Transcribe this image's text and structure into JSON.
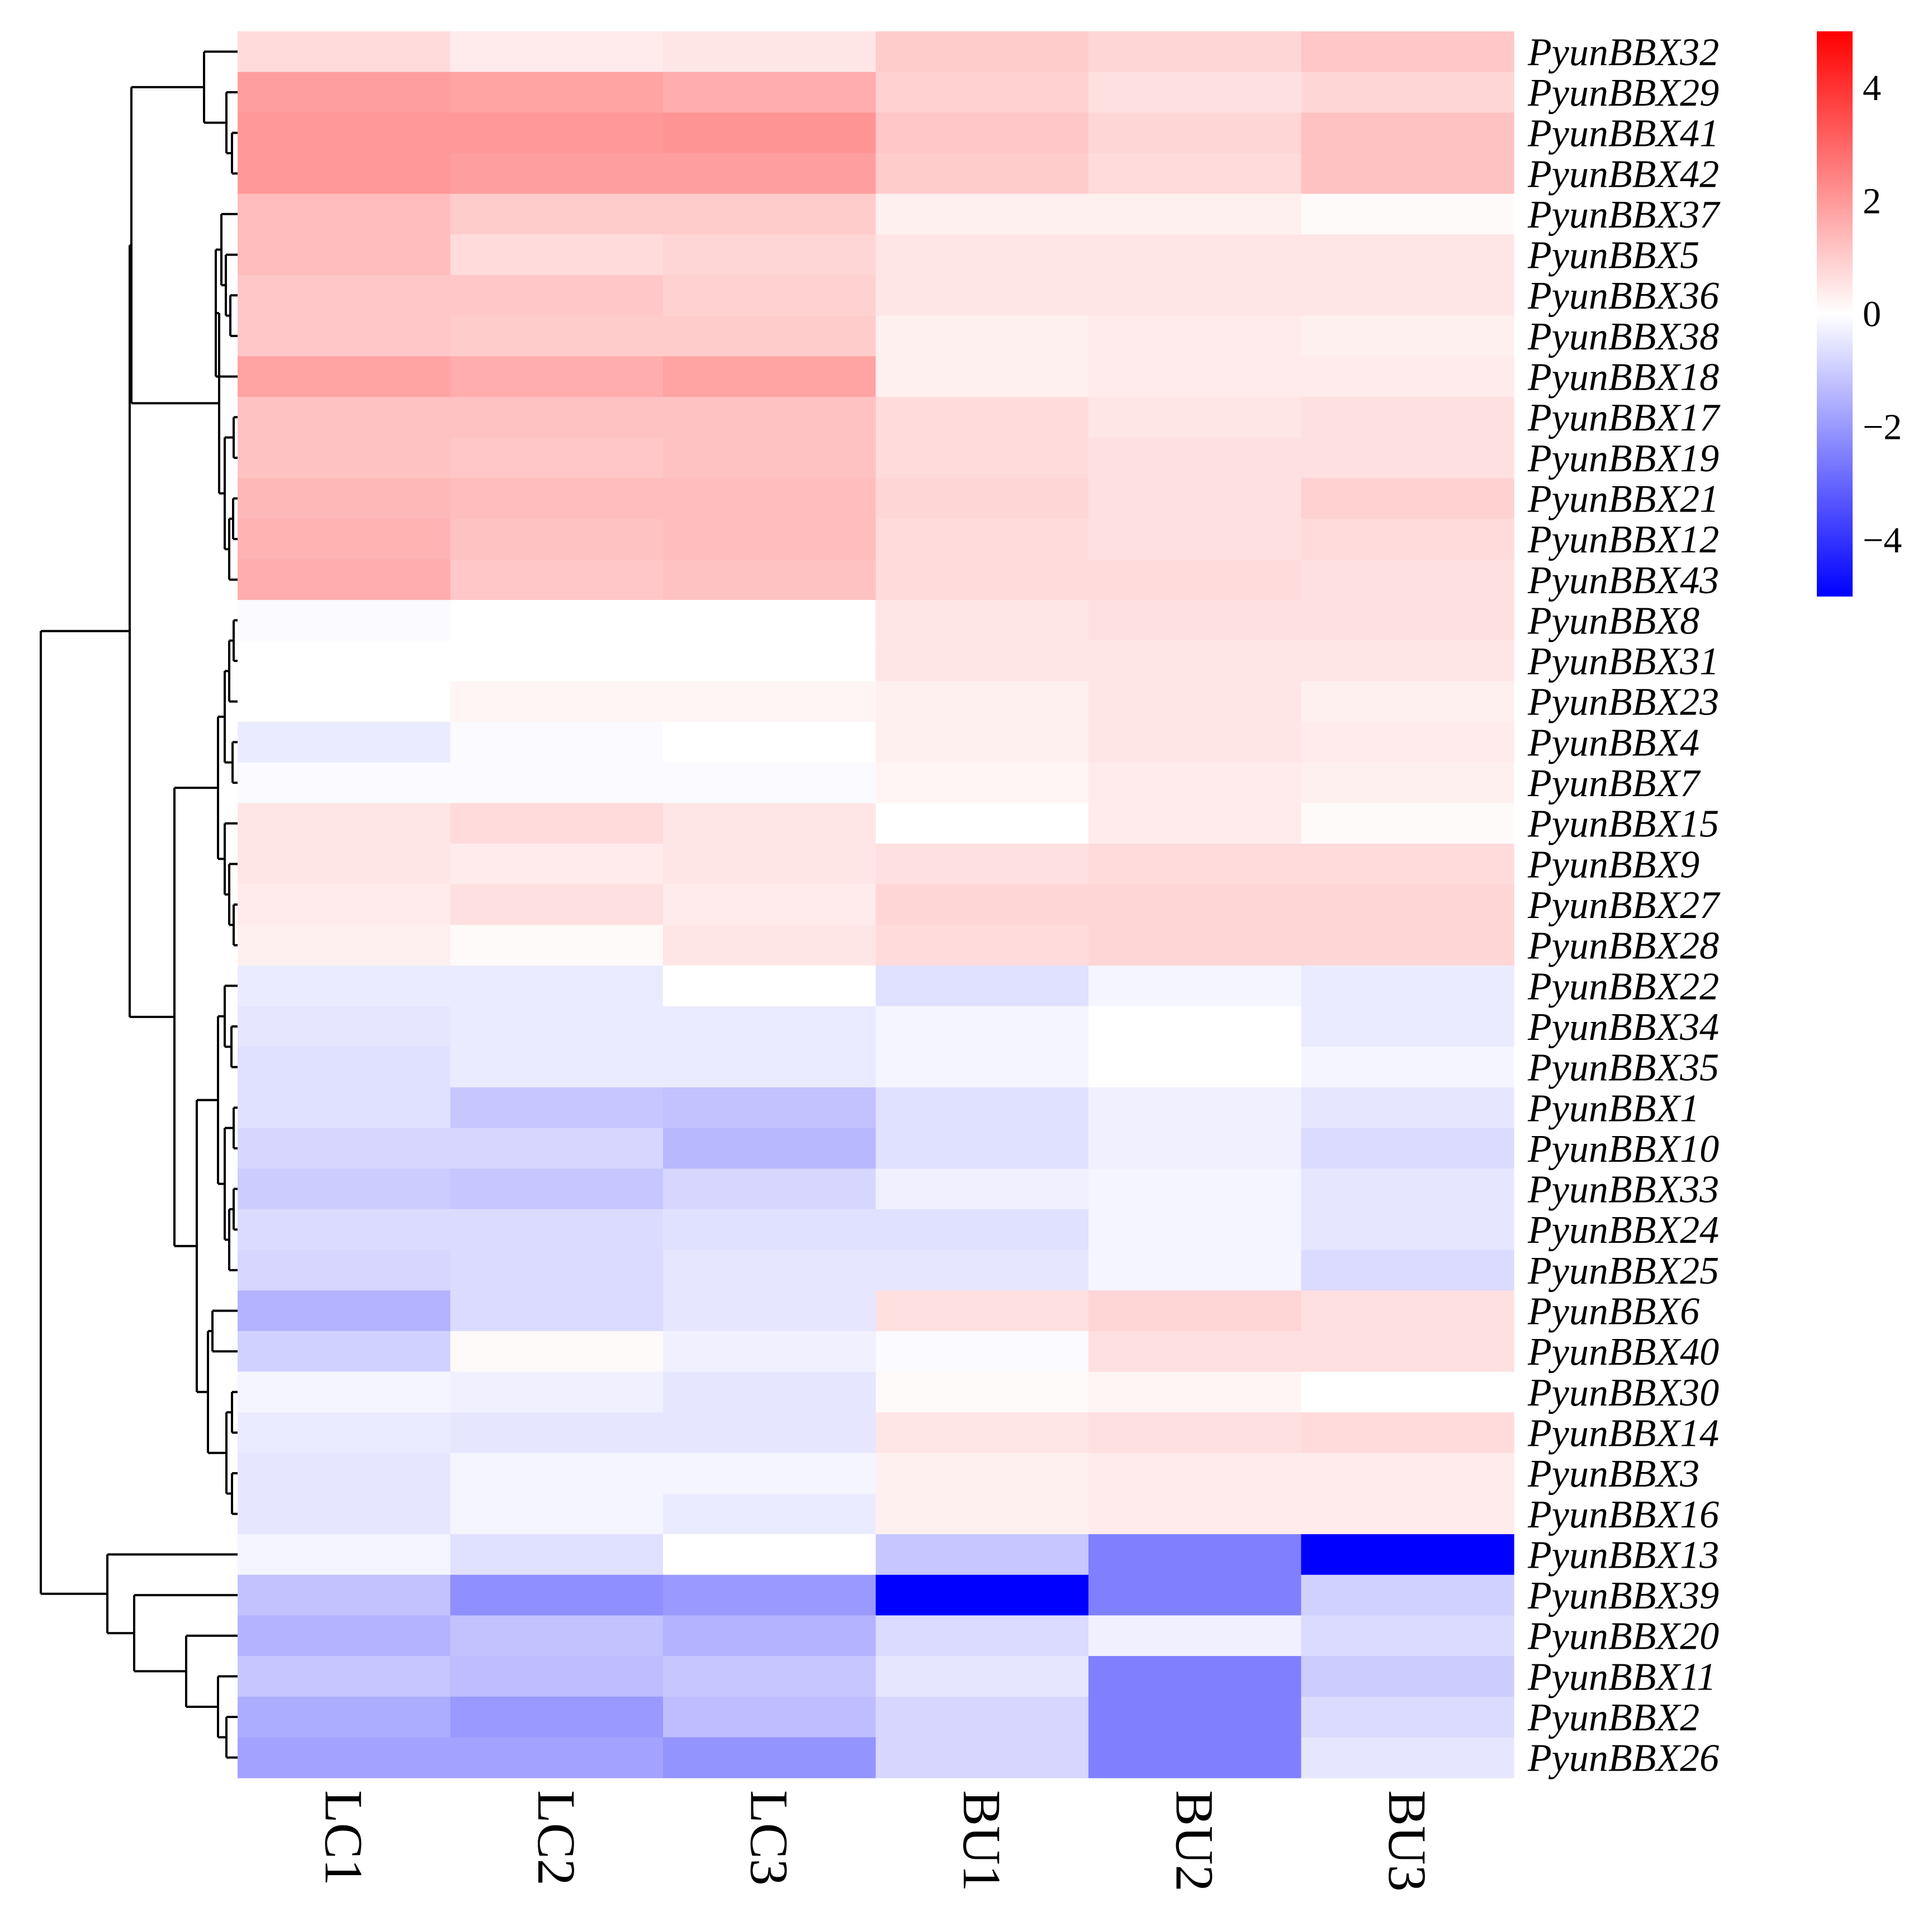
{
  "chart_data": {
    "type": "heatmap",
    "title": "",
    "columns": [
      "LC1",
      "LC2",
      "LC3",
      "BU1",
      "BU2",
      "BU3"
    ],
    "rows": [
      "PyunBBX32",
      "PyunBBX29",
      "PyunBBX41",
      "PyunBBX42",
      "PyunBBX37",
      "PyunBBX5",
      "PyunBBX36",
      "PyunBBX38",
      "PyunBBX18",
      "PyunBBX17",
      "PyunBBX19",
      "PyunBBX21",
      "PyunBBX12",
      "PyunBBX43",
      "PyunBBX8",
      "PyunBBX31",
      "PyunBBX23",
      "PyunBBX4",
      "PyunBBX7",
      "PyunBBX15",
      "PyunBBX9",
      "PyunBBX27",
      "PyunBBX28",
      "PyunBBX22",
      "PyunBBX34",
      "PyunBBX35",
      "PyunBBX1",
      "PyunBBX10",
      "PyunBBX33",
      "PyunBBX24",
      "PyunBBX25",
      "PyunBBX6",
      "PyunBBX40",
      "PyunBBX30",
      "PyunBBX14",
      "PyunBBX3",
      "PyunBBX16",
      "PyunBBX13",
      "PyunBBX39",
      "PyunBBX20",
      "PyunBBX11",
      "PyunBBX2",
      "PyunBBX26"
    ],
    "values": [
      [
        0.7,
        0.4,
        0.5,
        1.0,
        0.8,
        1.1
      ],
      [
        1.9,
        1.8,
        1.6,
        0.9,
        0.6,
        0.8
      ],
      [
        2.0,
        2.0,
        2.1,
        1.1,
        0.8,
        1.2
      ],
      [
        2.0,
        1.9,
        1.9,
        1.0,
        0.7,
        1.2
      ],
      [
        1.3,
        1.0,
        1.0,
        0.3,
        0.3,
        0.1
      ],
      [
        1.3,
        0.7,
        0.8,
        0.5,
        0.5,
        0.5
      ],
      [
        1.1,
        1.1,
        0.9,
        0.5,
        0.5,
        0.5
      ],
      [
        1.1,
        1.0,
        1.0,
        0.3,
        0.4,
        0.3
      ],
      [
        1.8,
        1.6,
        1.8,
        0.3,
        0.4,
        0.4
      ],
      [
        1.2,
        1.2,
        1.2,
        0.7,
        0.5,
        0.6
      ],
      [
        1.2,
        1.1,
        1.2,
        0.7,
        0.6,
        0.6
      ],
      [
        1.4,
        1.3,
        1.3,
        0.8,
        0.6,
        0.9
      ],
      [
        1.5,
        1.2,
        1.3,
        0.7,
        0.6,
        0.7
      ],
      [
        1.6,
        1.1,
        1.2,
        0.7,
        0.7,
        0.6
      ],
      [
        -0.1,
        0.0,
        0.0,
        0.5,
        0.6,
        0.6
      ],
      [
        0.0,
        0.0,
        0.0,
        0.5,
        0.5,
        0.5
      ],
      [
        0.0,
        0.2,
        0.2,
        0.3,
        0.5,
        0.3
      ],
      [
        -0.4,
        -0.1,
        0.0,
        0.3,
        0.5,
        0.4
      ],
      [
        -0.1,
        -0.1,
        -0.1,
        0.2,
        0.4,
        0.3
      ],
      [
        0.5,
        0.7,
        0.5,
        0.0,
        0.4,
        0.1
      ],
      [
        0.5,
        0.4,
        0.5,
        0.6,
        0.7,
        0.7
      ],
      [
        0.4,
        0.6,
        0.4,
        0.8,
        0.8,
        0.8
      ],
      [
        0.3,
        0.1,
        0.5,
        0.7,
        0.8,
        0.8
      ],
      [
        -0.4,
        -0.4,
        0.0,
        -0.6,
        -0.2,
        -0.4
      ],
      [
        -0.5,
        -0.4,
        -0.4,
        -0.2,
        0.0,
        -0.4
      ],
      [
        -0.6,
        -0.4,
        -0.4,
        -0.2,
        0.0,
        -0.2
      ],
      [
        -0.6,
        -1.1,
        -1.2,
        -0.6,
        -0.3,
        -0.5
      ],
      [
        -0.8,
        -0.8,
        -1.4,
        -0.6,
        -0.3,
        -0.7
      ],
      [
        -1.0,
        -1.1,
        -0.8,
        -0.3,
        -0.2,
        -0.5
      ],
      [
        -0.7,
        -0.7,
        -0.6,
        -0.6,
        -0.2,
        -0.5
      ],
      [
        -0.8,
        -0.7,
        -0.5,
        -0.5,
        -0.2,
        -0.7
      ],
      [
        -1.5,
        -0.7,
        -0.5,
        0.6,
        0.8,
        0.6
      ],
      [
        -0.9,
        0.1,
        -0.3,
        -0.1,
        0.6,
        0.6
      ],
      [
        -0.2,
        -0.3,
        -0.5,
        0.1,
        0.2,
        0.0
      ],
      [
        -0.4,
        -0.5,
        -0.5,
        0.5,
        0.6,
        0.7
      ],
      [
        -0.5,
        -0.2,
        -0.2,
        0.3,
        0.4,
        0.4
      ],
      [
        -0.5,
        -0.2,
        -0.4,
        0.3,
        0.4,
        0.4
      ],
      [
        -0.2,
        -0.6,
        0.0,
        -1.1,
        -2.5,
        -5.0
      ],
      [
        -1.2,
        -2.2,
        -2.0,
        -5.0,
        -2.5,
        -0.9
      ],
      [
        -1.5,
        -1.2,
        -1.5,
        -0.7,
        -0.3,
        -0.7
      ],
      [
        -1.1,
        -1.3,
        -1.1,
        -0.5,
        -2.5,
        -1.0
      ],
      [
        -1.6,
        -2.0,
        -1.3,
        -0.8,
        -2.5,
        -0.7
      ],
      [
        -1.8,
        -1.8,
        -2.1,
        -0.8,
        -2.5,
        -0.5
      ]
    ],
    "colorbar": {
      "min": -5,
      "max": 5,
      "colors": [
        "#0000ff",
        "#ffffff",
        "#ff0000"
      ],
      "ticks": [
        4,
        2,
        0,
        -2,
        -4
      ],
      "tick_labels": [
        "4",
        "2",
        "0",
        "−2",
        "−4"
      ]
    },
    "row_dendrogram": "left",
    "xlabel": "",
    "ylabel": ""
  }
}
